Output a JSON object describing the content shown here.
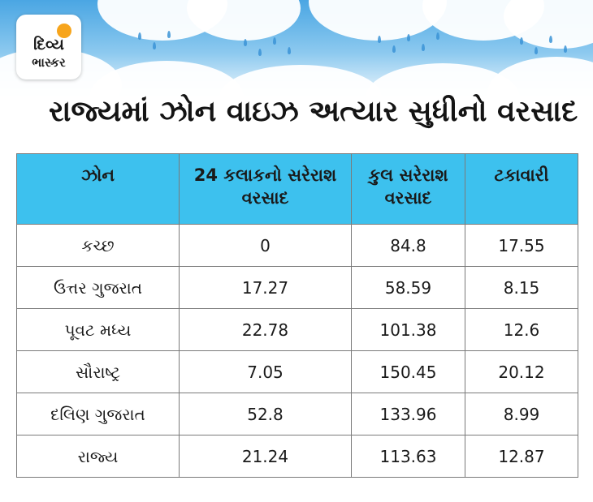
{
  "logo": {
    "line1": "દિવ્ય",
    "line2": "ભાસ્કર"
  },
  "title": "રાજ્યમાં ઝોન વાઇઝ અત્યાર સુધીનો વરસાદ",
  "table": {
    "headers": [
      "ઝોન",
      "24 કલાકનો સરેરાશ વરસાદ",
      "કુલ સરેરાશ વરસાદ",
      "ટકાવારી"
    ],
    "rows": [
      [
        "કચ્છ",
        "0",
        "84.8",
        "17.55"
      ],
      [
        "ઉત્તર ગુજરાત",
        "17.27",
        "58.59",
        "8.15"
      ],
      [
        "પૂવટ મધ્ય",
        "22.78",
        "101.38",
        "12.6"
      ],
      [
        "સૌરાષ્ટ્ર",
        "7.05",
        "150.45",
        "20.12"
      ],
      [
        "દલિણ ગુજરાત",
        "52.8",
        "133.96",
        "8.99"
      ],
      [
        "રાજ્ય",
        "21.24",
        "113.63",
        "12.87"
      ]
    ]
  },
  "colors": {
    "header_bg": "#3dc1ee",
    "sky": "#4aa6e3",
    "sun": "#f7a51c"
  },
  "icons": {
    "banner": "rain-clouds-icon",
    "logo": "sun-icon"
  }
}
